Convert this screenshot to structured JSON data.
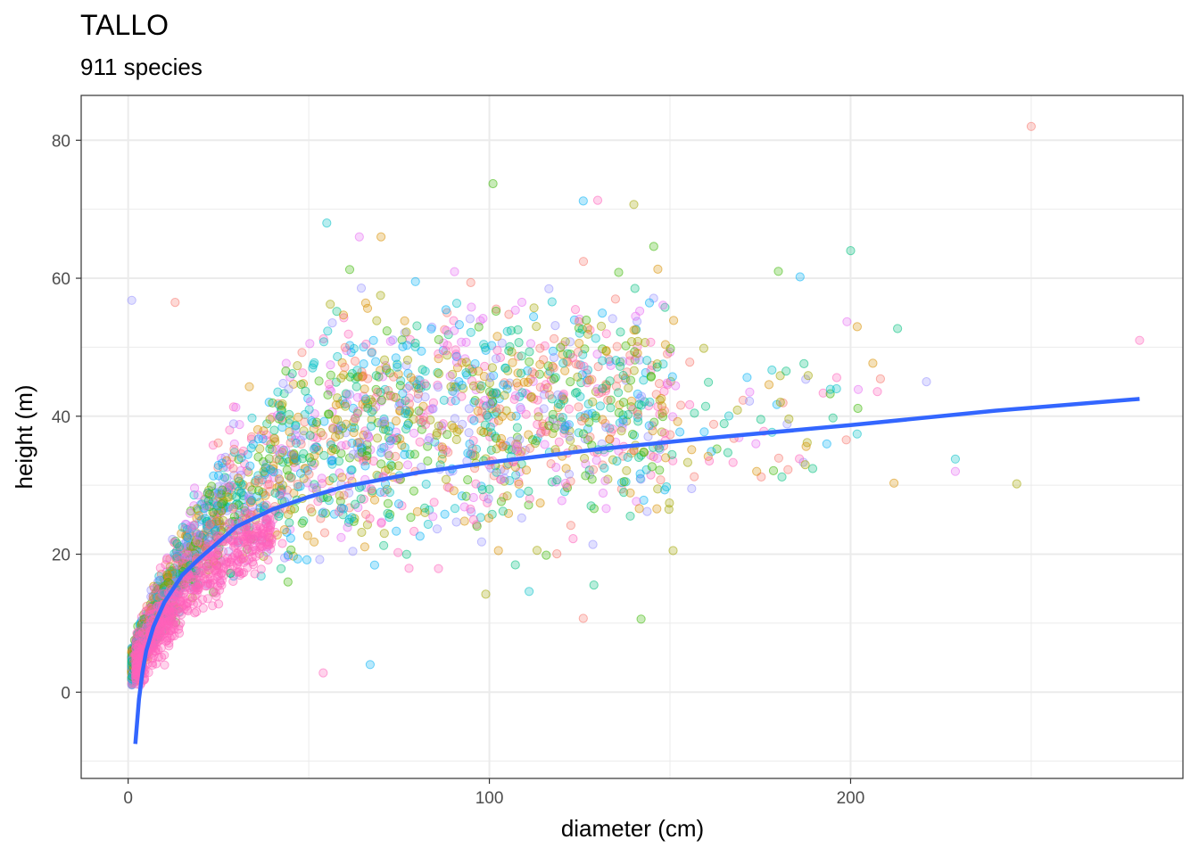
{
  "chart_data": {
    "type": "scatter",
    "title": "TALLO",
    "subtitle": "911 species",
    "xlabel": "diameter (cm)",
    "ylabel": "height (m)",
    "xlim": [
      -13,
      292
    ],
    "ylim": [
      -12.5,
      86.5
    ],
    "x_ticks": [
      0,
      100,
      200
    ],
    "y_ticks": [
      0,
      20,
      40,
      60,
      80
    ],
    "grid": true,
    "point_alpha": 0.3,
    "palette": [
      "#F8766D",
      "#D89000",
      "#A3A500",
      "#39B600",
      "#00BF7D",
      "#00BFC4",
      "#00B0F6",
      "#9590FF",
      "#E76BF3",
      "#FF62BC"
    ],
    "fit_line": {
      "color": "#3366FF",
      "x": [
        2,
        3,
        4,
        5,
        7,
        10,
        15,
        20,
        30,
        40,
        50,
        60,
        80,
        100,
        130,
        160,
        200,
        240,
        280
      ],
      "y": [
        -7.5,
        -1,
        3,
        6,
        9.5,
        13,
        17,
        19.5,
        24,
        26.5,
        28.3,
        29.8,
        31.8,
        33.3,
        35.2,
        36.8,
        38.7,
        40.8,
        42.5
      ]
    },
    "highlight_points": [
      {
        "x": 250,
        "y": 82
      },
      {
        "x": 101,
        "y": 73.7
      },
      {
        "x": 126,
        "y": 71.2
      },
      {
        "x": 130,
        "y": 71.3
      },
      {
        "x": 140,
        "y": 70.7
      },
      {
        "x": 55,
        "y": 68
      },
      {
        "x": 64,
        "y": 66
      },
      {
        "x": 70,
        "y": 66
      },
      {
        "x": 200,
        "y": 64
      },
      {
        "x": 1,
        "y": 56.8
      },
      {
        "x": 13,
        "y": 56.5
      },
      {
        "x": 180,
        "y": 61
      },
      {
        "x": 186,
        "y": 60.2
      },
      {
        "x": 280,
        "y": 51
      },
      {
        "x": 246,
        "y": 30.2
      },
      {
        "x": 229,
        "y": 33.8
      },
      {
        "x": 229,
        "y": 32
      },
      {
        "x": 212,
        "y": 30.3
      },
      {
        "x": 213,
        "y": 52.7
      },
      {
        "x": 221,
        "y": 45
      },
      {
        "x": 126,
        "y": 10.7
      },
      {
        "x": 142,
        "y": 10.6
      },
      {
        "x": 67,
        "y": 4
      },
      {
        "x": 54,
        "y": 2.8
      },
      {
        "x": 99,
        "y": 14.2
      },
      {
        "x": 111,
        "y": 14.6
      },
      {
        "x": 199,
        "y": 53.7
      },
      {
        "x": 174,
        "y": 32
      },
      {
        "x": 181,
        "y": 31.2
      },
      {
        "x": 156,
        "y": 29.5
      }
    ]
  }
}
